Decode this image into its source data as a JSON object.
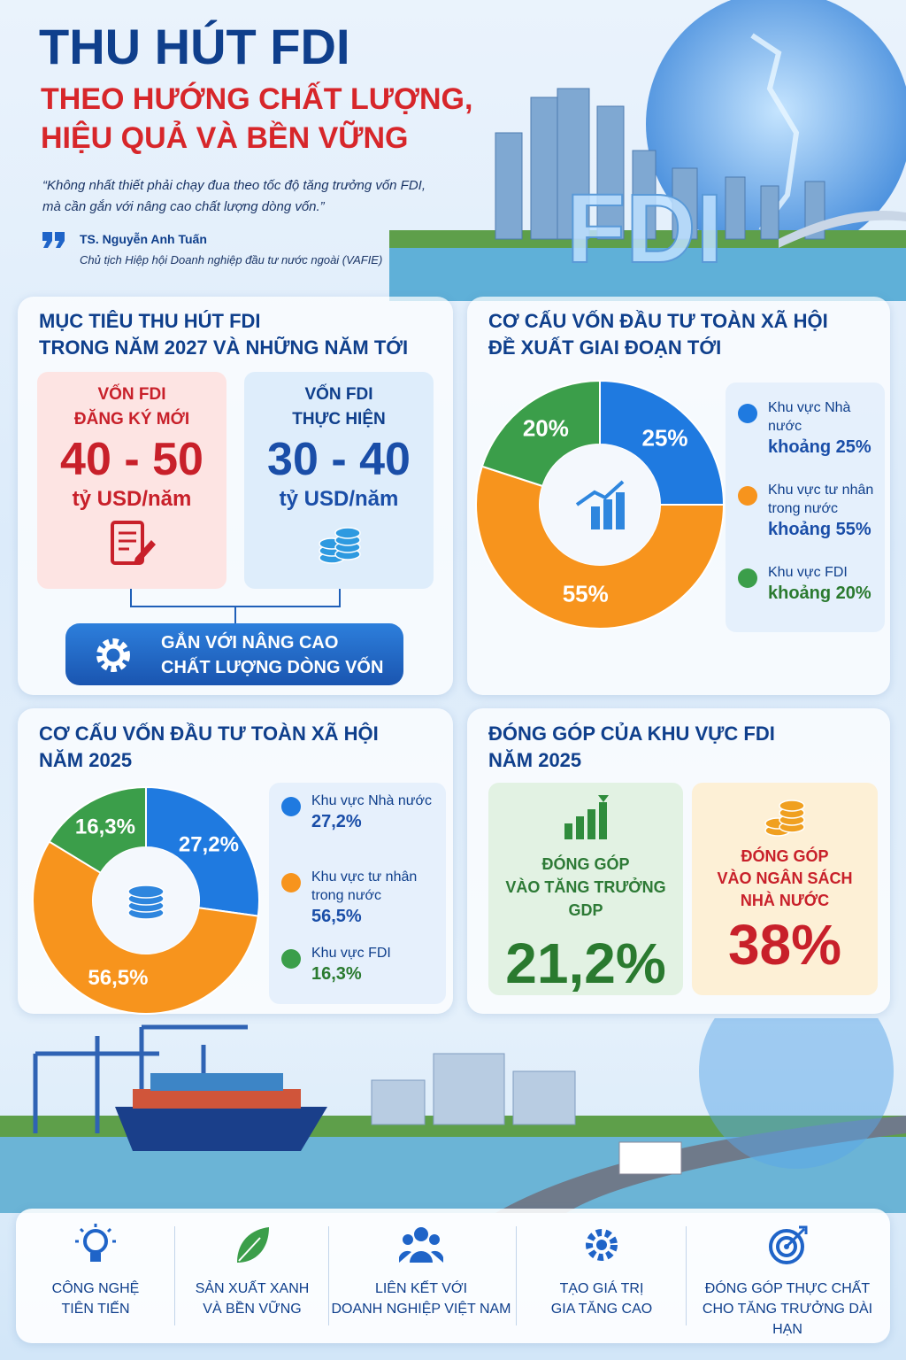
{
  "header": {
    "title": "THU HÚT FDI",
    "subtitle_1": "THEO HƯỚNG CHẤT LƯỢNG,",
    "subtitle_2": "HIỆU QUẢ VÀ BỀN VỮNG",
    "quote_1": "“Không nhất thiết phải chạy đua theo tốc độ tăng trưởng vốn FDI,",
    "quote_2": "mà cần gắn với nâng cao chất lượng dòng vốn.”",
    "author": "TS. Nguyễn Anh Tuấn",
    "author_role": "Chủ tịch Hiệp hội Doanh nghiệp đầu tư nước ngoài (VAFIE)",
    "image_label": "FDI"
  },
  "targets": {
    "title_1": "MỤC TIÊU THU HÚT FDI",
    "title_2": "TRONG NĂM 2027 VÀ NHỮNG NĂM TỚI",
    "cards": [
      {
        "label_1": "VỐN FDI",
        "label_2": "ĐĂNG KÝ MỚI",
        "value": "40 - 50",
        "unit": "tỷ USD/năm"
      },
      {
        "label_1": "VỐN FDI",
        "label_2": "THỰC HIỆN",
        "value": "30 - 40",
        "unit": "tỷ USD/năm"
      }
    ],
    "footer_1": "GẮN VỚI NÂNG CAO",
    "footer_2": "CHẤT LƯỢNG DÒNG VỐN"
  },
  "chart_data": [
    {
      "type": "pie",
      "title": "CƠ CẤU VỐN ĐẦU TƯ TOÀN XÃ HỘI",
      "subtitle": "ĐỀ XUẤT GIAI ĐOẠN TỚI",
      "categories": [
        "Khu vực Nhà nước",
        "Khu vực tư nhân trong nước",
        "Khu vực FDI"
      ],
      "values": [
        25,
        55,
        20
      ],
      "value_labels": [
        "25%",
        "55%",
        "20%"
      ],
      "legend_values": [
        "khoảng 25%",
        "khoảng 55%",
        "khoảng 20%"
      ],
      "colors": [
        "#1f7ae0",
        "#f7941d",
        "#3b9e4a"
      ]
    },
    {
      "type": "pie",
      "title": "CƠ CẤU VỐN ĐẦU TƯ TOÀN XÃ HỘI",
      "subtitle": "NĂM 2025",
      "categories": [
        "Khu vực Nhà nước",
        "Khu vực tư nhân trong nước",
        "Khu vực FDI"
      ],
      "values": [
        27.2,
        56.5,
        16.3
      ],
      "value_labels": [
        "27,2%",
        "56,5%",
        "16,3%"
      ],
      "colors": [
        "#1f7ae0",
        "#f7941d",
        "#3b9e4a"
      ]
    }
  ],
  "contribution": {
    "title": "ĐÓNG GÓP CỦA KHU VỰC FDI",
    "subtitle": "NĂM 2025",
    "cards": [
      {
        "label_1": "ĐÓNG GÓP",
        "label_2": "VÀO TĂNG TRƯỞNG GDP",
        "value": "21,2%"
      },
      {
        "label_1": "ĐÓNG GÓP",
        "label_2": "VÀO NGÂN SÁCH",
        "label_3": "NHÀ NƯỚC",
        "value": "38%"
      }
    ]
  },
  "pillars": [
    {
      "line_1": "CÔNG NGHỆ",
      "line_2": "TIÊN TIẾN"
    },
    {
      "line_1": "SẢN XUẤT XANH",
      "line_2": "VÀ BỀN VỮNG"
    },
    {
      "line_1": "LIÊN KẾT VỚI",
      "line_2": "DOANH NGHIỆP VIỆT NAM"
    },
    {
      "line_1": "TẠO GIÁ TRỊ",
      "line_2": "GIA TĂNG CAO"
    },
    {
      "line_1": "ĐÓNG GÓP THỰC CHẤT",
      "line_2": "CHO TĂNG TRƯỞNG DÀI HẠN"
    }
  ]
}
